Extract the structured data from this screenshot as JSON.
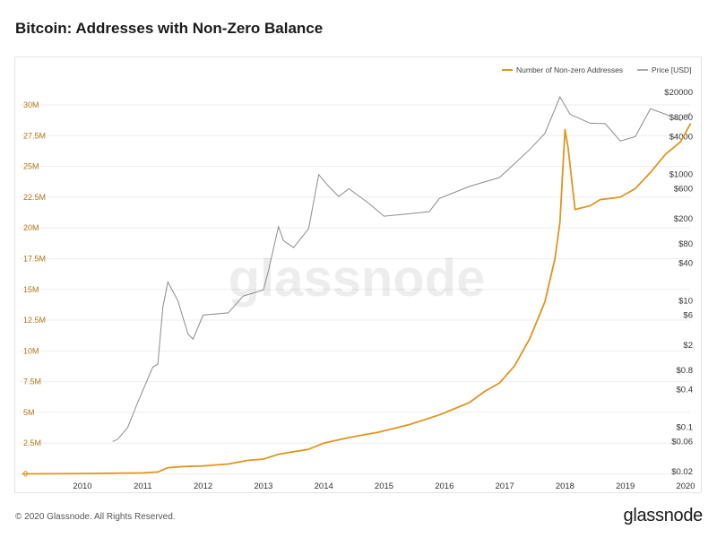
{
  "title": "Bitcoin: Addresses with Non-Zero Balance",
  "footer": {
    "copyright": "© 2020 Glassnode. All Rights Reserved.",
    "logo": "glassnode"
  },
  "watermark": "glassnode",
  "colors": {
    "addresses": "#e0951f",
    "price": "#8c8c8c",
    "left_axis_text": "#b07a1a"
  },
  "chart_data": {
    "type": "line",
    "title": "Bitcoin: Addresses with Non-Zero Balance",
    "legend_position": "top-right",
    "grid": "horizontal",
    "x_ticks": [
      "2010",
      "2011",
      "2012",
      "2013",
      "2014",
      "2015",
      "2016",
      "2017",
      "2018",
      "2019",
      "2020"
    ],
    "left_axis": {
      "ticks": [
        "0",
        "2.5M",
        "5M",
        "7.5M",
        "10M",
        "12.5M",
        "15M",
        "17.5M",
        "20M",
        "22.5M",
        "25M",
        "27.5M",
        "30M"
      ],
      "ylim": [
        0,
        31500000
      ]
    },
    "right_axis": {
      "scale": "log",
      "ticks": [
        "$0.02",
        "$0.06",
        "$0.1",
        "$0.4",
        "$0.8",
        "$2",
        "$6",
        "$10",
        "$40",
        "$80",
        "$200",
        "$600",
        "$1000",
        "$4000",
        "$8000",
        "$20000"
      ],
      "tick_values": [
        0.02,
        0.06,
        0.1,
        0.4,
        0.8,
        2,
        6,
        10,
        40,
        80,
        200,
        600,
        1000,
        4000,
        8000,
        20000
      ]
    },
    "series": [
      {
        "name": "Number of Non-zero Addresses",
        "axis": "left",
        "points": [
          [
            "2009-01",
            0
          ],
          [
            "2010-01",
            30000
          ],
          [
            "2010-07",
            50000
          ],
          [
            "2011-01",
            80000
          ],
          [
            "2011-04",
            150000
          ],
          [
            "2011-06",
            500000
          ],
          [
            "2011-09",
            600000
          ],
          [
            "2012-01",
            650000
          ],
          [
            "2012-06",
            800000
          ],
          [
            "2012-10",
            1100000
          ],
          [
            "2013-01",
            1200000
          ],
          [
            "2013-04",
            1600000
          ],
          [
            "2013-07",
            1800000
          ],
          [
            "2013-10",
            2000000
          ],
          [
            "2014-01",
            2500000
          ],
          [
            "2014-06",
            2950000
          ],
          [
            "2014-12",
            3400000
          ],
          [
            "2015-06",
            4000000
          ],
          [
            "2015-12",
            4800000
          ],
          [
            "2016-06",
            5800000
          ],
          [
            "2016-09",
            6700000
          ],
          [
            "2016-12",
            7400000
          ],
          [
            "2017-03",
            8800000
          ],
          [
            "2017-06",
            11000000
          ],
          [
            "2017-09",
            14000000
          ],
          [
            "2017-11",
            17500000
          ],
          [
            "2017-12",
            20500000
          ],
          [
            "2018-01",
            28000000
          ],
          [
            "2018-01-20",
            26500000
          ],
          [
            "2018-03",
            21500000
          ],
          [
            "2018-06",
            21800000
          ],
          [
            "2018-08",
            22300000
          ],
          [
            "2018-12",
            22500000
          ],
          [
            "2019-03",
            23200000
          ],
          [
            "2019-06",
            24500000
          ],
          [
            "2019-09",
            26000000
          ],
          [
            "2019-12",
            27000000
          ],
          [
            "2020-02",
            28500000
          ]
        ]
      },
      {
        "name": "Price [USD]",
        "axis": "right",
        "points": [
          [
            "2010-07",
            0.06
          ],
          [
            "2010-08",
            0.065
          ],
          [
            "2010-10",
            0.1
          ],
          [
            "2010-12",
            0.25
          ],
          [
            "2011-03",
            0.9
          ],
          [
            "2011-04",
            1.0
          ],
          [
            "2011-05",
            8
          ],
          [
            "2011-06",
            20
          ],
          [
            "2011-08",
            10
          ],
          [
            "2011-10",
            3
          ],
          [
            "2011-11",
            2.5
          ],
          [
            "2012-01",
            6
          ],
          [
            "2012-06",
            6.5
          ],
          [
            "2012-09",
            12
          ],
          [
            "2013-01",
            15
          ],
          [
            "2013-02",
            30
          ],
          [
            "2013-04",
            150
          ],
          [
            "2013-05",
            90
          ],
          [
            "2013-07",
            70
          ],
          [
            "2013-10",
            140
          ],
          [
            "2013-12",
            1000
          ],
          [
            "2014-02",
            650
          ],
          [
            "2014-04",
            450
          ],
          [
            "2014-06",
            600
          ],
          [
            "2014-10",
            350
          ],
          [
            "2015-01",
            220
          ],
          [
            "2015-06",
            240
          ],
          [
            "2015-10",
            260
          ],
          [
            "2015-12",
            420
          ],
          [
            "2016-06",
            650
          ],
          [
            "2016-12",
            900
          ],
          [
            "2017-06",
            2500
          ],
          [
            "2017-09",
            4500
          ],
          [
            "2017-12",
            17000
          ],
          [
            "2018-02",
            9000
          ],
          [
            "2018-06",
            6500
          ],
          [
            "2018-09",
            6400
          ],
          [
            "2018-12",
            3400
          ],
          [
            "2019-03",
            4000
          ],
          [
            "2019-06",
            11000
          ],
          [
            "2019-09",
            9000
          ],
          [
            "2019-12",
            7200
          ],
          [
            "2020-02",
            9500
          ]
        ]
      }
    ]
  }
}
